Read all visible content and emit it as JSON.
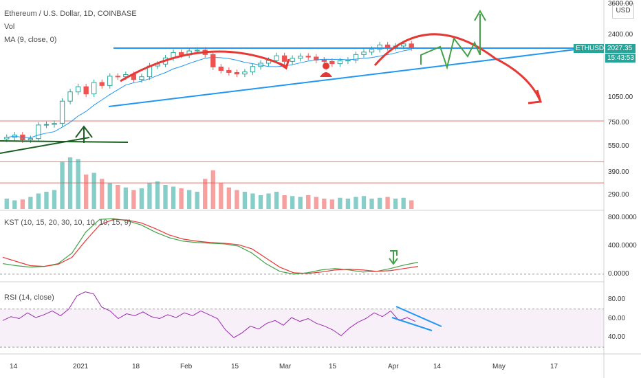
{
  "header": {
    "title": "Ethereum / U.S. Dollar, 1D, COINBASE",
    "vol_label": "Vol",
    "ma_label": "MA (9, close, 0)",
    "kst_label": "KST (10, 15, 20, 30, 10, 10, 10, 15, 9)",
    "rsi_label": "RSI (14, close)"
  },
  "currency": "USD",
  "ticker": {
    "symbol": "ETHUSD",
    "price": "2027.35",
    "countdown": "15:43:53"
  },
  "colors": {
    "up": "#26a69a",
    "down": "#ef5350",
    "trend": "#2196f3",
    "arrow_red": "#e53935",
    "arrow_green": "#43a047",
    "rsi": "#9c27b0",
    "kst": "#43a047",
    "kst_signal": "#e53935",
    "hline": "#e57373"
  },
  "chart_data": [
    {
      "type": "line",
      "title": "Ethereum / U.S. Dollar, 1D, COINBASE",
      "scale": "log",
      "y_ticks": [
        290,
        390,
        550,
        750,
        1050,
        2400,
        3600
      ],
      "y_tick_labels": [
        "290.00",
        "390.00",
        "550.00",
        "750.00",
        "1050.00",
        "2400.00",
        "3600.00"
      ],
      "x_tick_labels": [
        "14",
        "2021",
        "18",
        "Feb",
        "15",
        "Mar",
        "15",
        "Apr",
        "14",
        "May",
        "17"
      ],
      "horizontal_levels": [
        770,
        450,
        340
      ],
      "close": [
        620,
        640,
        600,
        610,
        730,
        735,
        745,
        1000,
        1130,
        1210,
        1100,
        1280,
        1230,
        1390,
        1380,
        1420,
        1330,
        1380,
        1590,
        1630,
        1770,
        1900,
        1840,
        1940,
        1960,
        1850,
        1570,
        1500,
        1460,
        1430,
        1470,
        1580,
        1650,
        1710,
        1820,
        1690,
        1760,
        1810,
        1790,
        1720,
        1690,
        1640,
        1700,
        1720,
        1850,
        1910,
        1980,
        2100,
        2030,
        2070,
        2130,
        2027
      ],
      "volume": [
        12,
        10,
        11,
        14,
        18,
        20,
        22,
        55,
        60,
        58,
        40,
        42,
        35,
        30,
        28,
        25,
        22,
        24,
        30,
        32,
        28,
        26,
        24,
        22,
        20,
        35,
        45,
        30,
        25,
        22,
        20,
        18,
        16,
        18,
        20,
        16,
        15,
        14,
        16,
        14,
        12,
        11,
        13,
        12,
        14,
        15,
        12,
        13,
        14,
        12,
        13,
        10
      ],
      "legend": "ETHUSD"
    },
    {
      "type": "line",
      "title": "KST (10, 15, 20, 30, 10, 10, 10, 15, 9)",
      "y_tick_labels": [
        "800.0000",
        "400.0000",
        "0.0000"
      ],
      "ylim": [
        -50,
        850
      ],
      "series": [
        {
          "name": "KST",
          "values": [
            150,
            120,
            100,
            110,
            150,
            300,
            600,
            780,
            790,
            760,
            700,
            600,
            520,
            470,
            450,
            440,
            430,
            400,
            300,
            150,
            40,
            0,
            20,
            60,
            80,
            60,
            30,
            40,
            80,
            130,
            170
          ]
        },
        {
          "name": "Signal",
          "values": [
            240,
            180,
            120,
            110,
            140,
            240,
            480,
            700,
            780,
            770,
            730,
            650,
            560,
            500,
            470,
            450,
            440,
            420,
            360,
            230,
            100,
            20,
            10,
            30,
            60,
            70,
            60,
            40,
            50,
            80,
            110
          ]
        }
      ]
    },
    {
      "type": "line",
      "title": "RSI (14, close)",
      "y_tick_labels": [
        "80.00",
        "60.00",
        "40.00"
      ],
      "ylim": [
        25,
        95
      ],
      "band": [
        30,
        70
      ],
      "values": [
        58,
        62,
        60,
        66,
        61,
        64,
        68,
        63,
        70,
        84,
        88,
        86,
        72,
        68,
        60,
        65,
        63,
        67,
        62,
        60,
        64,
        61,
        66,
        63,
        68,
        64,
        60,
        48,
        40,
        45,
        52,
        49,
        55,
        58,
        53,
        61,
        57,
        60,
        55,
        52,
        48,
        42,
        50,
        56,
        60,
        66,
        62,
        68,
        58,
        61,
        57
      ]
    }
  ]
}
